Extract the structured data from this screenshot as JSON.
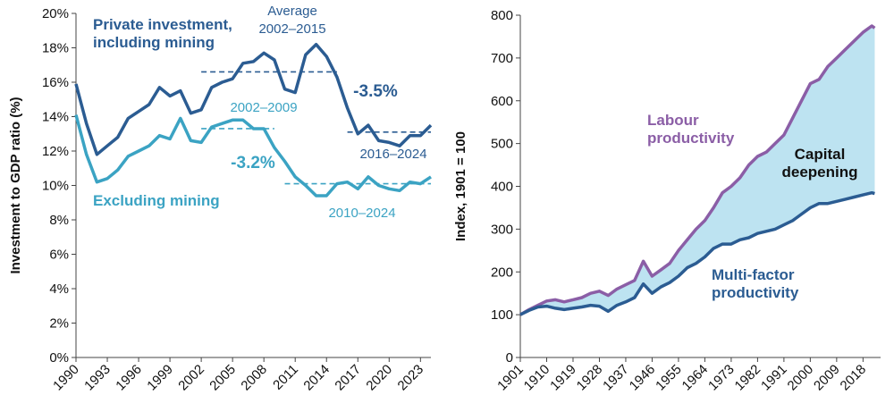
{
  "chart_data": [
    {
      "type": "line",
      "y_label": "Investment to GDP ratio (%)",
      "x": [
        1990,
        1991,
        1992,
        1993,
        1994,
        1995,
        1996,
        1997,
        1998,
        1999,
        2000,
        2001,
        2002,
        2003,
        2004,
        2005,
        2006,
        2007,
        2008,
        2009,
        2010,
        2011,
        2012,
        2013,
        2014,
        2015,
        2016,
        2017,
        2018,
        2019,
        2020,
        2021,
        2022,
        2023,
        2024
      ],
      "xlim": [
        1990,
        2024
      ],
      "xticks": [
        1990,
        1993,
        1996,
        1999,
        2002,
        2005,
        2008,
        2011,
        2014,
        2017,
        2020,
        2023
      ],
      "ylim": [
        0,
        20
      ],
      "yticks": [
        {
          "value": 0,
          "label": "0%"
        },
        {
          "value": 2,
          "label": "2%"
        },
        {
          "value": 4,
          "label": "4%"
        },
        {
          "value": 6,
          "label": "6%"
        },
        {
          "value": 8,
          "label": "8%"
        },
        {
          "value": 10,
          "label": "10%"
        },
        {
          "value": 12,
          "label": "12%"
        },
        {
          "value": 14,
          "label": "14%"
        },
        {
          "value": 16,
          "label": "16%"
        },
        {
          "value": 18,
          "label": "18%"
        },
        {
          "value": 20,
          "label": "20%"
        }
      ],
      "series": [
        {
          "name": "Private investment, including mining",
          "color": "#2b5c92",
          "values": [
            15.9,
            13.6,
            11.8,
            12.3,
            12.8,
            13.9,
            14.3,
            14.7,
            15.7,
            15.2,
            15.5,
            14.2,
            14.4,
            15.7,
            16.0,
            16.2,
            17.1,
            17.2,
            17.7,
            17.3,
            15.6,
            15.4,
            17.6,
            18.2,
            17.5,
            16.3,
            14.5,
            13.0,
            13.5,
            12.6,
            12.5,
            12.3,
            12.9,
            12.9,
            13.5
          ]
        },
        {
          "name": "Excluding mining",
          "color": "#3ba3c3",
          "values": [
            14.1,
            11.8,
            10.2,
            10.4,
            10.9,
            11.7,
            12.0,
            12.3,
            12.9,
            12.7,
            13.9,
            12.6,
            12.5,
            13.4,
            13.6,
            13.8,
            13.8,
            13.3,
            13.3,
            12.2,
            11.4,
            10.5,
            10.0,
            9.4,
            9.4,
            10.1,
            10.2,
            9.8,
            10.5,
            10.0,
            9.8,
            9.7,
            10.2,
            10.1,
            10.5
          ]
        }
      ],
      "reference_lines": [
        {
          "x": [
            2002,
            2015
          ],
          "value": 16.6,
          "label": "2002–2015",
          "color": "#2b5c92"
        },
        {
          "x": [
            2016,
            2024
          ],
          "value": 13.1,
          "label": "2016–2024",
          "color": "#2b5c92"
        },
        {
          "x": [
            2002,
            2009
          ],
          "value": 13.3,
          "label": "2002–2009",
          "color": "#3ba3c3"
        },
        {
          "x": [
            2010,
            2024
          ],
          "value": 10.1,
          "label": "2010–2024",
          "color": "#3ba3c3"
        }
      ],
      "annotations": [
        {
          "text": "Average",
          "color": "#2b5c92"
        },
        {
          "text": "-3.5%",
          "color": "#2b5c92"
        },
        {
          "text": "-3.2%",
          "color": "#3ba3c3"
        }
      ]
    },
    {
      "type": "line",
      "y_label": "Index, 1901 = 100",
      "x": [
        1901,
        1904,
        1907,
        1910,
        1913,
        1916,
        1919,
        1922,
        1925,
        1928,
        1931,
        1934,
        1937,
        1940,
        1943,
        1946,
        1949,
        1952,
        1955,
        1958,
        1961,
        1964,
        1967,
        1970,
        1973,
        1976,
        1979,
        1982,
        1985,
        1988,
        1991,
        1994,
        1997,
        2000,
        2003,
        2006,
        2009,
        2012,
        2015,
        2018,
        2021,
        2022
      ],
      "xlim": [
        1901,
        2024
      ],
      "xticks": [
        1901,
        1910,
        1919,
        1928,
        1937,
        1946,
        1955,
        1964,
        1973,
        1982,
        1991,
        2000,
        2009,
        2018
      ],
      "ylim": [
        0,
        800
      ],
      "yticks": [
        0,
        100,
        200,
        300,
        400,
        500,
        600,
        700,
        800
      ],
      "fill_between": {
        "color": "#bde3f1",
        "label": "Capital deepening"
      },
      "series": [
        {
          "name": "Labour productivity",
          "color": "#8b5ea6",
          "values": [
            100,
            112,
            122,
            132,
            135,
            130,
            135,
            140,
            150,
            155,
            145,
            160,
            170,
            180,
            225,
            190,
            205,
            220,
            250,
            275,
            300,
            320,
            350,
            385,
            400,
            420,
            450,
            470,
            480,
            500,
            520,
            560,
            600,
            640,
            650,
            680,
            700,
            720,
            740,
            760,
            775,
            770
          ]
        },
        {
          "name": "Multi-factor productivity",
          "color": "#2b5c92",
          "values": [
            100,
            110,
            118,
            120,
            115,
            112,
            115,
            118,
            122,
            120,
            108,
            122,
            130,
            140,
            172,
            150,
            165,
            175,
            190,
            210,
            220,
            235,
            255,
            265,
            265,
            275,
            280,
            290,
            295,
            300,
            310,
            320,
            335,
            350,
            360,
            360,
            365,
            370,
            375,
            380,
            385,
            383
          ]
        }
      ]
    }
  ]
}
